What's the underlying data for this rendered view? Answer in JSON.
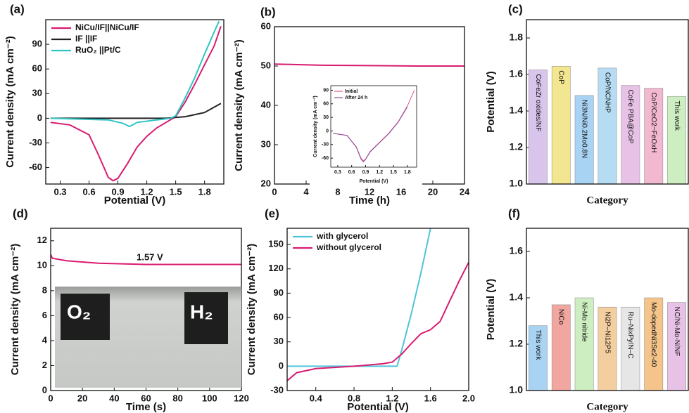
{
  "chart_data": [
    {
      "type": "line",
      "panel_label": "(a)",
      "x_label": "Potential (V)",
      "y_label": "Current density (mA cm⁻²)",
      "xlim": [
        0.15,
        2.0
      ],
      "xticks": [
        0.3,
        0.6,
        0.9,
        1.2,
        1.5,
        1.8
      ],
      "ylim": [
        -80,
        120
      ],
      "yticks": [
        -60,
        -30,
        0,
        30,
        60,
        90
      ],
      "legend": "upper-left",
      "series": [
        {
          "name": "NiCu/IF||NiCu/IF",
          "color": "#d81b70",
          "x": [
            0.2,
            0.4,
            0.6,
            0.7,
            0.8,
            0.85,
            0.9,
            1.0,
            1.1,
            1.2,
            1.3,
            1.4,
            1.5,
            1.6,
            1.7,
            1.8,
            1.9,
            1.97
          ],
          "values": [
            -5,
            -8,
            -20,
            -45,
            -72,
            -76,
            -73,
            -55,
            -35,
            -22,
            -12,
            -5,
            2,
            20,
            42,
            65,
            88,
            112
          ]
        },
        {
          "name": "IF ||IF",
          "color": "#222222",
          "x": [
            0.2,
            0.8,
            1.4,
            1.6,
            1.8,
            1.97
          ],
          "values": [
            0,
            0,
            0,
            2,
            7,
            18
          ]
        },
        {
          "name": "RuO₂ ||Pt/C",
          "color": "#2ec4c4",
          "x": [
            0.2,
            0.8,
            0.95,
            1.02,
            1.1,
            1.3,
            1.45,
            1.5,
            1.6,
            1.7,
            1.8,
            1.9,
            1.95
          ],
          "values": [
            0,
            -2,
            -6,
            -10,
            -5,
            -2,
            0,
            3,
            25,
            50,
            78,
            105,
            118
          ]
        }
      ]
    },
    {
      "type": "line",
      "panel_label": "(b)",
      "x_label": "Time (h)",
      "y_label": "Current density (mA cm⁻²)",
      "xlim": [
        0,
        24
      ],
      "xticks": [
        0,
        4,
        8,
        12,
        16,
        20,
        24
      ],
      "ylim": [
        20,
        60
      ],
      "yticks": [
        20,
        30,
        40,
        50,
        60
      ],
      "series": [
        {
          "name": null,
          "color": "#d81b70",
          "x": [
            0,
            2,
            6,
            12,
            18,
            24
          ],
          "values": [
            50.5,
            50.4,
            50.2,
            50.1,
            50.0,
            50.0
          ]
        }
      ],
      "inset": {
        "type": "line",
        "x_label": "Potential (V)",
        "y_label": "Current density (mA cm⁻²)",
        "xlim": [
          0.15,
          2.0
        ],
        "xticks": [
          0.3,
          0.6,
          0.9,
          1.2,
          1.5,
          1.8
        ],
        "ylim": [
          -80,
          100
        ],
        "yticks": [
          -60,
          -30,
          0,
          30,
          60,
          90
        ],
        "legend": "upper-left",
        "series": [
          {
            "name": "Initial",
            "color": "#e05a8a",
            "x": [
              0.2,
              0.5,
              0.7,
              0.8,
              0.85,
              0.9,
              1.0,
              1.2,
              1.4,
              1.6,
              1.8,
              1.95
            ],
            "values": [
              -5,
              -10,
              -35,
              -60,
              -66,
              -62,
              -45,
              -25,
              -5,
              20,
              55,
              90
            ]
          },
          {
            "name": "After 24 h",
            "color": "#8a4a9a",
            "x": [
              0.2,
              0.5,
              0.7,
              0.8,
              0.85,
              0.9,
              1.0,
              1.2,
              1.4,
              1.6,
              1.8
            ],
            "values": [
              -5,
              -10,
              -36,
              -62,
              -68,
              -63,
              -46,
              -26,
              -6,
              19,
              53
            ]
          }
        ]
      }
    },
    {
      "type": "bar",
      "panel_label": "(c)",
      "x_label": "Category",
      "y_label": "Potential (V)",
      "ylim": [
        1.0,
        1.9
      ],
      "yticks": [
        {
          "value": 1,
          "label": "1.0"
        },
        1.2,
        1.4,
        1.6,
        1.8
      ],
      "categories": [
        "CoFeZr oxides/NF",
        "CoP",
        "Ni3N/Ni0.2Mo0.8N",
        "CoP/NCNHP",
        "CoFe PBA@CoP",
        "CoP/CeO2−FeOxH",
        "This work"
      ],
      "values": [
        1.625,
        1.645,
        1.485,
        1.635,
        1.54,
        1.525,
        1.48
      ],
      "colors": [
        "#d9c4ec",
        "#f3e690",
        "#a9d3f2",
        "#b6dcf4",
        "#e7c2e6",
        "#f2b8d0",
        "#cdeec0"
      ]
    },
    {
      "type": "line",
      "panel_label": "(d)",
      "x_label": "Time (s)",
      "y_label": "Current density (mA cm⁻²)",
      "xlim": [
        0,
        120
      ],
      "xticks": [
        0,
        20,
        40,
        60,
        80,
        100,
        120
      ],
      "ylim": [
        0,
        13
      ],
      "yticks": [
        0,
        2,
        4,
        6,
        8,
        10,
        12
      ],
      "annotation": "1.57 V",
      "photo_labels": [
        "O₂",
        "H₂"
      ],
      "series": [
        {
          "name": null,
          "color": "#d81b70",
          "x": [
            0,
            1,
            10,
            30,
            60,
            90,
            120
          ],
          "values": [
            10.9,
            10.6,
            10.4,
            10.2,
            10.1,
            10.1,
            10.1
          ]
        }
      ]
    },
    {
      "type": "line",
      "panel_label": "(e)",
      "x_label": "Potential (V)",
      "y_label": "Current density (mA cm⁻²)",
      "xlim": [
        0.1,
        2.0
      ],
      "xticks": [
        0.4,
        0.8,
        1.2,
        1.6,
        {
          "value": 2,
          "label": "2.0"
        }
      ],
      "ylim": [
        -30,
        170
      ],
      "yticks": [
        -30,
        0,
        30,
        60,
        90,
        120,
        150
      ],
      "legend": "upper-left",
      "series": [
        {
          "name": "with glycerol",
          "color": "#4fc3d8",
          "x": [
            0.1,
            1.25,
            1.3,
            1.4,
            1.5,
            1.6
          ],
          "values": [
            0,
            0,
            20,
            65,
            115,
            170
          ]
        },
        {
          "name": "without glycerol",
          "color": "#d81b70",
          "x": [
            0.1,
            0.2,
            0.4,
            0.8,
            1.1,
            1.2,
            1.3,
            1.4,
            1.5,
            1.6,
            1.7,
            1.8,
            1.9,
            2.0
          ],
          "values": [
            -18,
            -8,
            -3,
            0,
            3,
            5,
            15,
            28,
            40,
            45,
            55,
            80,
            105,
            128
          ]
        }
      ]
    },
    {
      "type": "bar",
      "panel_label": "(f)",
      "x_label": "Category",
      "y_label": "Potential (V)",
      "ylim": [
        1.0,
        1.7
      ],
      "yticks": [
        {
          "value": 1,
          "label": "1.0"
        },
        1.2,
        1.4,
        1.6
      ],
      "categories": [
        "This work",
        "NiCo",
        "Ni-Mo nitride",
        "Ni2P–Ni12P5",
        "Ru–NixPy/N–C",
        "Mo-dopedNi3Se2-40",
        "NC/Ni-Mo-N/NF"
      ],
      "values": [
        1.28,
        1.37,
        1.4,
        1.36,
        1.36,
        1.4,
        1.38
      ],
      "colors": [
        "#a9d3f2",
        "#f2a6a0",
        "#cdeec0",
        "#f3cfa0",
        "#e6e6e6",
        "#f4c48a",
        "#e7c2e6"
      ]
    }
  ]
}
